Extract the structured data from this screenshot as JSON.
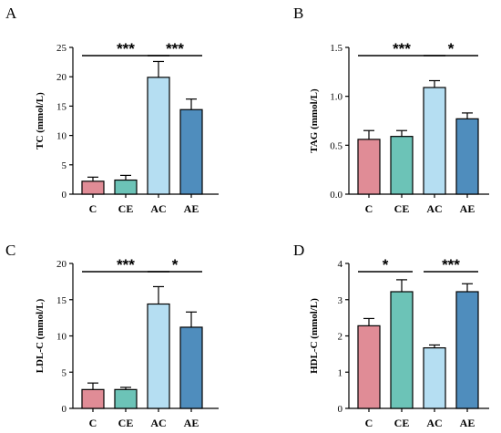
{
  "chart_data": [
    {
      "panel": "A",
      "type": "bar",
      "categories": [
        "C",
        "CE",
        "AC",
        "AE"
      ],
      "values": [
        2.2,
        2.4,
        19.9,
        14.4
      ],
      "errors": [
        0.7,
        0.8,
        2.7,
        1.8
      ],
      "ylabel": "TC (mmol/L)",
      "ylim": [
        0,
        25
      ],
      "yticks": [
        0,
        5,
        10,
        15,
        20,
        25
      ],
      "significance": [
        {
          "from": "C",
          "to": "AC",
          "label": "***"
        },
        {
          "from": "AC",
          "to": "AE",
          "label": "***"
        }
      ]
    },
    {
      "panel": "B",
      "type": "bar",
      "categories": [
        "C",
        "CE",
        "AC",
        "AE"
      ],
      "values": [
        0.56,
        0.59,
        1.09,
        0.77
      ],
      "errors": [
        0.09,
        0.06,
        0.07,
        0.06
      ],
      "ylabel": "TAG (mmol/L)",
      "ylim": [
        0,
        1.5
      ],
      "yticks": [
        "0.0",
        "0.5",
        "1.0",
        "1.5"
      ],
      "significance": [
        {
          "from": "C",
          "to": "AC",
          "label": "***"
        },
        {
          "from": "AC",
          "to": "AE",
          "label": "*"
        }
      ]
    },
    {
      "panel": "C",
      "type": "bar",
      "categories": [
        "C",
        "CE",
        "AC",
        "AE"
      ],
      "values": [
        2.6,
        2.6,
        14.4,
        11.2
      ],
      "errors": [
        0.9,
        0.3,
        2.4,
        2.1
      ],
      "ylabel": "LDL-C (mmol/L)",
      "ylim": [
        0,
        20
      ],
      "yticks": [
        0,
        5,
        10,
        15,
        20
      ],
      "significance": [
        {
          "from": "C",
          "to": "AC",
          "label": "***"
        },
        {
          "from": "AC",
          "to": "AE",
          "label": "*"
        }
      ]
    },
    {
      "panel": "D",
      "type": "bar",
      "categories": [
        "C",
        "CE",
        "AC",
        "AE"
      ],
      "values": [
        2.28,
        3.22,
        1.67,
        3.22
      ],
      "errors": [
        0.2,
        0.33,
        0.08,
        0.22
      ],
      "ylabel": "HDL-C (mmol/L)",
      "ylim": [
        0,
        4
      ],
      "yticks": [
        0,
        1,
        2,
        3,
        4
      ],
      "significance": [
        {
          "from": "C",
          "to": "CE",
          "label": "*"
        },
        {
          "from": "AC",
          "to": "AE",
          "label": "***"
        }
      ]
    }
  ],
  "colors": {
    "C": "#e08c96",
    "CE": "#6cc3b7",
    "AC": "#b5def2",
    "AE": "#4f8dbd",
    "edge": "#000000"
  }
}
